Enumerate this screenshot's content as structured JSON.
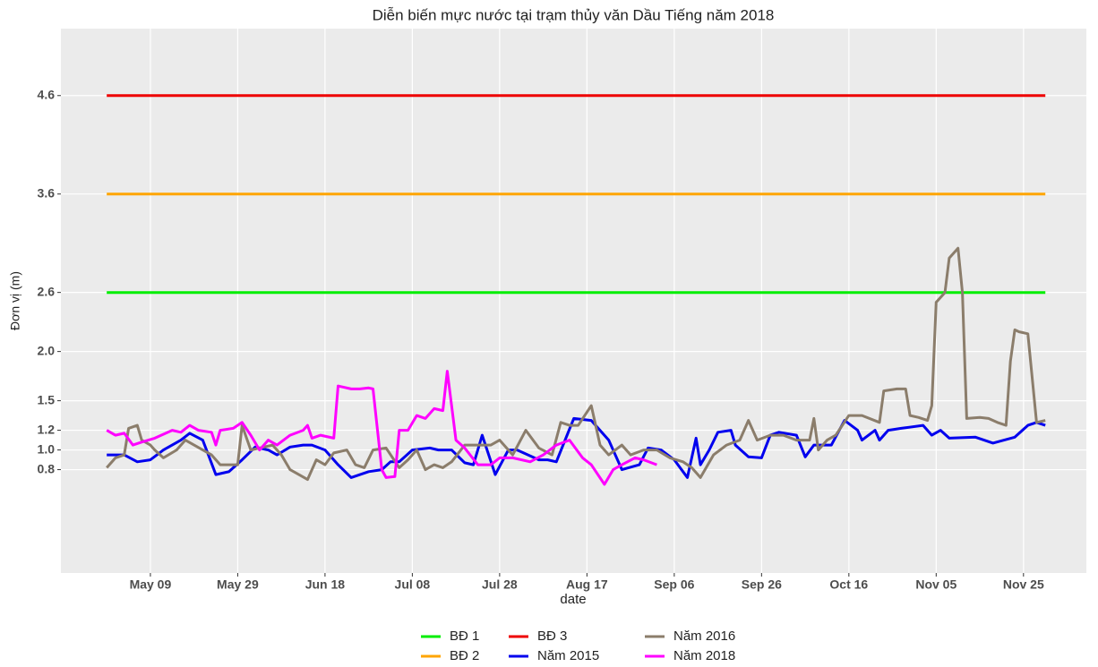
{
  "chart_data": {
    "type": "line",
    "title": "Diễn biến mực nước tại trạm thủy văn Dầu Tiếng năm 2018",
    "x_label": "date",
    "y_label": "Đơn vị (m)",
    "xlim": [
      108.5,
      343.4
    ],
    "ylim": [
      -0.25,
      5.28
    ],
    "xticks": [
      {
        "value": 129,
        "label": "May 09"
      },
      {
        "value": 149,
        "label": "May 29"
      },
      {
        "value": 169,
        "label": "Jun 18"
      },
      {
        "value": 189,
        "label": "Jul 08"
      },
      {
        "value": 209,
        "label": "Jul 28"
      },
      {
        "value": 229,
        "label": "Aug 17"
      },
      {
        "value": 249,
        "label": "Sep 06"
      },
      {
        "value": 269,
        "label": "Sep 26"
      },
      {
        "value": 289,
        "label": "Oct 16"
      },
      {
        "value": 309,
        "label": "Nov 05"
      },
      {
        "value": 329,
        "label": "Nov 25"
      }
    ],
    "yticks": [
      0.8,
      {
        "value": 1.0,
        "label": "1.0"
      },
      1.2,
      1.5,
      {
        "value": 2.0,
        "label": "2.0"
      },
      2.6,
      3.6,
      4.6
    ],
    "grid": true,
    "legend": "bottom",
    "series": [
      {
        "name": "BĐ 1",
        "color": "#00ee00",
        "x": [
          119,
          334
        ],
        "values": [
          2.6,
          2.6
        ]
      },
      {
        "name": "BĐ 2",
        "color": "#ffa500",
        "x": [
          119,
          334
        ],
        "values": [
          3.6,
          3.6
        ]
      },
      {
        "name": "BĐ 3",
        "color": "#ee0000",
        "x": [
          119,
          334
        ],
        "values": [
          4.6,
          4.6
        ]
      },
      {
        "name": "Năm 2015",
        "color": "#0000ee",
        "x": [
          119,
          123,
          126,
          129,
          132,
          136,
          138,
          141,
          144,
          147,
          150,
          153,
          156,
          158,
          161,
          164,
          166,
          169,
          172,
          175,
          179,
          182,
          184,
          186,
          189,
          193,
          195,
          198,
          201,
          203,
          205,
          208,
          211,
          213,
          218,
          220,
          222,
          226,
          230,
          234,
          237,
          241,
          243,
          246,
          249,
          252,
          254,
          255,
          257,
          259,
          262,
          263,
          266,
          269,
          271,
          273,
          277,
          279,
          281,
          285,
          288,
          291,
          292,
          295,
          296,
          298,
          301,
          306,
          308,
          310,
          312,
          318,
          322,
          327,
          330,
          332,
          334
        ],
        "values": [
          0.95,
          0.95,
          0.88,
          0.9,
          1.0,
          1.1,
          1.17,
          1.1,
          0.75,
          0.78,
          0.9,
          1.03,
          1.0,
          0.95,
          1.03,
          1.05,
          1.05,
          1.0,
          0.85,
          0.72,
          0.78,
          0.8,
          0.88,
          0.88,
          1.0,
          1.02,
          1.0,
          1.0,
          0.87,
          0.85,
          1.15,
          0.75,
          1.0,
          1.0,
          0.9,
          0.9,
          0.88,
          1.32,
          1.3,
          1.1,
          0.8,
          0.85,
          1.02,
          1.0,
          0.9,
          0.72,
          1.12,
          0.85,
          1.0,
          1.18,
          1.2,
          1.05,
          0.93,
          0.92,
          1.15,
          1.18,
          1.15,
          0.93,
          1.05,
          1.05,
          1.3,
          1.2,
          1.1,
          1.2,
          1.1,
          1.2,
          1.22,
          1.25,
          1.15,
          1.2,
          1.12,
          1.13,
          1.07,
          1.13,
          1.25,
          1.28,
          1.25
        ]
      },
      {
        "name": "Năm 2016",
        "color": "#8b7d6b",
        "x": [
          119,
          121,
          123,
          124,
          126,
          127,
          129,
          130,
          132,
          135,
          137,
          139,
          141,
          143,
          145,
          147,
          149,
          150,
          152,
          155,
          157,
          159,
          161,
          163,
          165,
          167,
          169,
          171,
          174,
          176,
          178,
          180,
          183,
          186,
          188,
          190,
          192,
          194,
          196,
          198,
          201,
          204,
          207,
          209,
          212,
          215,
          218,
          221,
          223,
          225,
          227,
          230,
          232,
          234,
          237,
          239,
          242,
          245,
          248,
          251,
          253,
          255,
          258,
          261,
          264,
          266,
          268,
          271,
          274,
          277,
          280,
          281,
          282,
          284,
          286,
          289,
          292,
          296,
          297,
          300,
          302,
          303,
          305,
          307,
          308,
          309,
          311,
          312,
          314,
          315,
          316,
          319,
          321,
          323,
          325,
          326,
          327,
          328,
          330,
          332,
          334
        ],
        "values": [
          0.82,
          0.92,
          0.95,
          1.22,
          1.25,
          1.1,
          1.05,
          1.0,
          0.92,
          1.0,
          1.1,
          1.05,
          1.0,
          0.95,
          0.85,
          0.85,
          0.85,
          1.25,
          1.0,
          1.03,
          1.05,
          0.95,
          0.8,
          0.75,
          0.7,
          0.9,
          0.85,
          0.97,
          1.0,
          0.85,
          0.82,
          1.0,
          1.02,
          0.82,
          0.9,
          1.0,
          0.8,
          0.85,
          0.82,
          0.88,
          1.05,
          1.05,
          1.05,
          1.1,
          0.95,
          1.2,
          1.02,
          0.95,
          1.28,
          1.25,
          1.25,
          1.45,
          1.05,
          0.95,
          1.05,
          0.95,
          1.0,
          1.0,
          0.92,
          0.88,
          0.82,
          0.72,
          0.95,
          1.05,
          1.1,
          1.3,
          1.1,
          1.15,
          1.15,
          1.1,
          1.1,
          1.32,
          1.0,
          1.1,
          1.15,
          1.35,
          1.35,
          1.28,
          1.6,
          1.62,
          1.62,
          1.35,
          1.33,
          1.3,
          1.45,
          2.5,
          2.6,
          2.95,
          3.05,
          2.6,
          1.32,
          1.33,
          1.32,
          1.28,
          1.25,
          1.9,
          2.22,
          2.2,
          2.18,
          1.28,
          1.3
        ]
      },
      {
        "name": "Năm 2018",
        "color": "#ff00ff",
        "x": [
          119,
          121,
          123,
          125,
          127,
          130,
          134,
          136,
          138,
          140,
          143,
          144,
          145,
          148,
          150,
          152,
          154,
          156,
          158,
          161,
          164,
          165,
          166,
          168,
          171,
          172,
          175,
          177,
          179,
          180,
          182,
          183,
          185,
          186,
          188,
          190,
          192,
          194,
          196,
          197,
          199,
          201,
          204,
          207,
          209,
          212,
          216,
          219,
          222,
          225,
          228,
          230,
          233,
          235,
          237,
          240,
          242,
          245
        ],
        "values": [
          1.2,
          1.15,
          1.17,
          1.05,
          1.08,
          1.12,
          1.2,
          1.18,
          1.25,
          1.2,
          1.18,
          1.05,
          1.2,
          1.22,
          1.28,
          1.15,
          1.0,
          1.1,
          1.05,
          1.15,
          1.2,
          1.25,
          1.12,
          1.15,
          1.12,
          1.65,
          1.62,
          1.62,
          1.63,
          1.62,
          0.8,
          0.72,
          0.73,
          1.2,
          1.2,
          1.35,
          1.32,
          1.42,
          1.4,
          1.8,
          1.1,
          1.02,
          0.85,
          0.85,
          0.92,
          0.92,
          0.88,
          0.95,
          1.05,
          1.1,
          0.92,
          0.85,
          0.65,
          0.8,
          0.85,
          0.92,
          0.9,
          0.85
        ]
      }
    ]
  }
}
